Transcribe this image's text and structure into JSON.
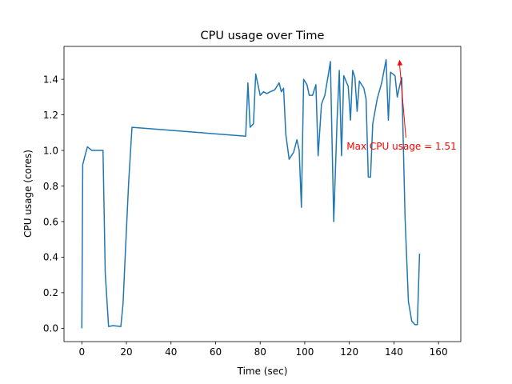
{
  "chart_data": {
    "type": "line",
    "title": "CPU usage over Time",
    "xlabel": "Time (sec)",
    "ylabel": "CPU usage (cores)",
    "xlim": [
      -8,
      170
    ],
    "ylim": [
      -0.075,
      1.585
    ],
    "xticks": [
      0,
      20,
      40,
      60,
      80,
      100,
      120,
      140,
      160
    ],
    "yticks": [
      0.0,
      0.2,
      0.4,
      0.6,
      0.8,
      1.0,
      1.2,
      1.4
    ],
    "grid": false,
    "colors": {
      "line": "#1f77b4",
      "annotation": "#ff0000"
    },
    "series": [
      {
        "points": [
          [
            0,
            0.0
          ],
          [
            0.4,
            0.92
          ],
          [
            1.2,
            0.96
          ],
          [
            2.5,
            1.02
          ],
          [
            4.5,
            1.0
          ],
          [
            9.5,
            1.0
          ],
          [
            10.5,
            0.31
          ],
          [
            12.0,
            0.01
          ],
          [
            14.0,
            0.015
          ],
          [
            17.5,
            0.01
          ],
          [
            18.5,
            0.14
          ],
          [
            19.5,
            0.42
          ],
          [
            21.0,
            0.82
          ],
          [
            22.5,
            1.13
          ],
          [
            73.5,
            1.08
          ],
          [
            74.5,
            1.38
          ],
          [
            75.5,
            1.13
          ],
          [
            77.0,
            1.15
          ],
          [
            78.0,
            1.43
          ],
          [
            79.0,
            1.37
          ],
          [
            80.0,
            1.31
          ],
          [
            81.5,
            1.33
          ],
          [
            83.0,
            1.32
          ],
          [
            84.5,
            1.33
          ],
          [
            86.5,
            1.34
          ],
          [
            88.5,
            1.38
          ],
          [
            89.5,
            1.33
          ],
          [
            90.5,
            1.35
          ],
          [
            91.5,
            1.09
          ],
          [
            93.0,
            0.95
          ],
          [
            95.0,
            0.99
          ],
          [
            96.5,
            1.06
          ],
          [
            97.5,
            1.0
          ],
          [
            98.5,
            0.68
          ],
          [
            99.5,
            1.4
          ],
          [
            101.0,
            1.37
          ],
          [
            102.0,
            1.31
          ],
          [
            103.5,
            1.31
          ],
          [
            105.0,
            1.37
          ],
          [
            106.0,
            0.97
          ],
          [
            107.5,
            1.26
          ],
          [
            109.0,
            1.31
          ],
          [
            110.5,
            1.42
          ],
          [
            111.5,
            1.5
          ],
          [
            113.0,
            0.6
          ],
          [
            114.5,
            1.17
          ],
          [
            115.5,
            1.45
          ],
          [
            116.5,
            0.97
          ],
          [
            117.5,
            1.42
          ],
          [
            119.5,
            1.36
          ],
          [
            120.5,
            1.17
          ],
          [
            121.5,
            1.45
          ],
          [
            122.5,
            1.41
          ],
          [
            123.5,
            1.22
          ],
          [
            124.5,
            1.39
          ],
          [
            126.5,
            1.35
          ],
          [
            127.5,
            1.29
          ],
          [
            128.5,
            0.85
          ],
          [
            129.5,
            0.85
          ],
          [
            130.5,
            1.15
          ],
          [
            132.5,
            1.29
          ],
          [
            134.5,
            1.38
          ],
          [
            136.5,
            1.51
          ],
          [
            137.5,
            1.17
          ],
          [
            138.5,
            1.44
          ],
          [
            139.5,
            1.43
          ],
          [
            140.5,
            1.42
          ],
          [
            141.5,
            1.3
          ],
          [
            142.5,
            1.36
          ],
          [
            143.5,
            1.41
          ],
          [
            145.0,
            0.62
          ],
          [
            146.5,
            0.15
          ],
          [
            148.0,
            0.04
          ],
          [
            149.5,
            0.02
          ],
          [
            150.5,
            0.02
          ],
          [
            151.5,
            0.42
          ]
        ]
      }
    ],
    "annotation": {
      "text": "Max CPU usage = 1.51",
      "point": [
        142.5,
        1.51
      ],
      "text_anchor": [
        119.5,
        1.0
      ]
    }
  }
}
